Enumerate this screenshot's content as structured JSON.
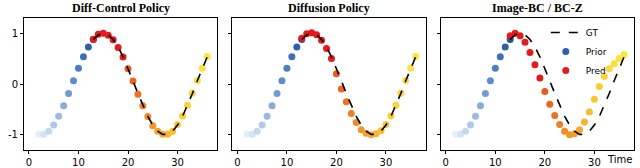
{
  "chart_data": [
    {
      "type": "scatter",
      "title": "Diff-Control Policy",
      "xlim": [
        -1,
        38
      ],
      "xticks": [
        0,
        10,
        20,
        30
      ],
      "ylim": [
        -1.3,
        1.3
      ],
      "yticks": [
        -1,
        0,
        1
      ],
      "grid": false,
      "series": [
        {
          "name": "Prior",
          "type": "scatter",
          "marker": "circle",
          "color": "#2e62a7",
          "x": [
            2,
            3,
            4,
            5,
            6,
            7,
            8,
            9,
            10,
            11,
            12,
            13
          ],
          "values": [
            -0.992,
            -0.992,
            -0.93,
            -0.809,
            -0.637,
            -0.426,
            -0.187,
            0.063,
            0.309,
            0.536,
            0.729,
            0.876
          ],
          "colors": [
            "#e6eef8",
            "#d6e3f3",
            "#c4d7ee",
            "#b0c9e8",
            "#9bbbe1",
            "#86acd9",
            "#719dd1",
            "#5d8ec8",
            "#4b7fbe",
            "#3b70b3",
            "#2e62a7",
            "#24559b"
          ]
        },
        {
          "name": "Pred",
          "type": "scatter",
          "marker": "circle",
          "color": "#e41a1c",
          "x": [
            13,
            14,
            15,
            16,
            17,
            18,
            19,
            20,
            21,
            22,
            23,
            24,
            25,
            26,
            27,
            28,
            29,
            30,
            31,
            32,
            33,
            34,
            35,
            36
          ],
          "values": [
            0.88,
            0.98,
            1.0,
            0.96,
            0.87,
            0.72,
            0.53,
            0.3,
            0.06,
            -0.2,
            -0.43,
            -0.64,
            -0.82,
            -0.93,
            -0.99,
            -0.99,
            -0.93,
            -0.8,
            -0.63,
            -0.42,
            -0.18,
            0.07,
            0.31,
            0.54
          ],
          "colors": [
            "#e41a1c",
            "#e41a1c",
            "#e41a1c",
            "#e41a1c",
            "#e41a1c",
            "#e41a1c",
            "#e41a1c",
            "#ea5a1e",
            "#ec6620",
            "#ee7222",
            "#f07e24",
            "#f28a26",
            "#f39528",
            "#f5a02a",
            "#f6aa2c",
            "#f8b42e",
            "#f9bd30",
            "#fac532",
            "#fbcc34",
            "#fcd236",
            "#fdd838",
            "#fddd3a",
            "#fee13c",
            "#fee53e"
          ]
        },
        {
          "name": "GT",
          "type": "line",
          "line_style": "dash",
          "color": "#000000",
          "x": [
            13,
            14,
            15,
            16,
            17,
            18,
            19,
            20,
            21,
            22,
            23,
            24,
            25,
            26,
            27,
            28,
            29,
            30,
            31,
            32,
            33,
            34,
            35,
            36
          ],
          "values": [
            0.876,
            0.968,
            1.0,
            0.968,
            0.876,
            0.729,
            0.536,
            0.309,
            0.063,
            -0.187,
            -0.426,
            -0.637,
            -0.809,
            -0.93,
            -0.992,
            -0.992,
            -0.93,
            -0.809,
            -0.637,
            -0.426,
            -0.187,
            0.063,
            0.309,
            0.536
          ]
        }
      ]
    },
    {
      "type": "scatter",
      "title": "Diffusion Policy",
      "tick_labels": "x",
      "xlim": [
        -1,
        38
      ],
      "xticks": [
        0,
        10,
        20,
        30
      ],
      "ylim": [
        -1.3,
        1.3
      ],
      "yticks": [
        -1,
        0,
        1
      ],
      "grid": false,
      "series": [
        {
          "name": "Prior",
          "type": "scatter",
          "marker": "circle",
          "color": "#2e62a7",
          "x": [
            2,
            3,
            4,
            5,
            6,
            7,
            8,
            9,
            10,
            11,
            12,
            13
          ],
          "values": [
            -0.992,
            -0.992,
            -0.93,
            -0.809,
            -0.637,
            -0.426,
            -0.187,
            0.063,
            0.309,
            0.536,
            0.729,
            0.876
          ],
          "colors": [
            "#e6eef8",
            "#d6e3f3",
            "#c4d7ee",
            "#b0c9e8",
            "#9bbbe1",
            "#86acd9",
            "#719dd1",
            "#5d8ec8",
            "#4b7fbe",
            "#3b70b3",
            "#2e62a7",
            "#24559b"
          ]
        },
        {
          "name": "Pred",
          "type": "scatter",
          "marker": "circle",
          "color": "#e41a1c",
          "x": [
            13,
            14,
            15,
            16,
            17,
            18,
            19,
            20,
            21,
            22,
            23,
            24,
            25,
            26,
            27,
            28,
            29,
            30,
            31,
            32,
            33,
            34,
            35,
            36
          ],
          "values": [
            0.9,
            0.99,
            1.01,
            0.97,
            0.86,
            0.7,
            0.5,
            0.2,
            -0.1,
            -0.35,
            -0.58,
            -0.76,
            -0.9,
            -0.97,
            -1.0,
            -0.98,
            -0.92,
            -0.8,
            -0.63,
            -0.42,
            -0.18,
            0.07,
            0.31,
            0.54
          ],
          "colors": [
            "#e41a1c",
            "#e41a1c",
            "#e41a1c",
            "#e41a1c",
            "#e41a1c",
            "#e41a1c",
            "#e41a1c",
            "#ea5a1e",
            "#ec6620",
            "#ee7222",
            "#f07e24",
            "#f28a26",
            "#f39528",
            "#f5a02a",
            "#f6aa2c",
            "#f8b42e",
            "#f9bd30",
            "#fac532",
            "#fbcc34",
            "#fcd236",
            "#fdd838",
            "#fddd3a",
            "#fee13c",
            "#fee53e"
          ]
        },
        {
          "name": "GT",
          "type": "line",
          "line_style": "dash",
          "color": "#000000",
          "x": [
            13,
            14,
            15,
            16,
            17,
            18,
            19,
            20,
            21,
            22,
            23,
            24,
            25,
            26,
            27,
            28,
            29,
            30,
            31,
            32,
            33,
            34,
            35,
            36
          ],
          "values": [
            0.876,
            0.968,
            1.0,
            0.968,
            0.876,
            0.729,
            0.536,
            0.309,
            0.063,
            -0.187,
            -0.426,
            -0.637,
            -0.809,
            -0.93,
            -0.992,
            -0.992,
            -0.93,
            -0.809,
            -0.637,
            -0.426,
            -0.187,
            0.063,
            0.309,
            0.536
          ]
        }
      ]
    },
    {
      "type": "scatter",
      "title": "Image-BC / BC-Z",
      "tick_labels": "x",
      "xlabel": "Time",
      "legend": "upper right",
      "xlim": [
        -1,
        38
      ],
      "xticks": [
        0,
        10,
        20,
        30
      ],
      "ylim": [
        -1.3,
        1.3
      ],
      "yticks": [
        -1,
        0,
        1
      ],
      "grid": false,
      "series": [
        {
          "name": "GT",
          "type": "line",
          "line_style": "dash",
          "color": "#000000",
          "x": [
            13,
            14,
            15,
            16,
            17,
            18,
            19,
            20,
            21,
            22,
            23,
            24,
            25,
            26,
            27,
            28,
            29,
            30,
            31,
            32,
            33,
            34,
            35,
            36
          ],
          "values": [
            0.876,
            0.968,
            1.0,
            0.968,
            0.876,
            0.729,
            0.536,
            0.309,
            0.063,
            -0.187,
            -0.426,
            -0.637,
            -0.809,
            -0.93,
            -0.992,
            -0.992,
            -0.93,
            -0.809,
            -0.637,
            -0.426,
            -0.187,
            0.063,
            0.309,
            0.536
          ]
        },
        {
          "name": "Prior",
          "type": "scatter",
          "marker": "circle",
          "color": "#2e62a7",
          "x": [
            2,
            3,
            4,
            5,
            6,
            7,
            8,
            9,
            10,
            11,
            12,
            13
          ],
          "values": [
            -0.992,
            -0.992,
            -0.93,
            -0.809,
            -0.637,
            -0.426,
            -0.187,
            0.063,
            0.309,
            0.536,
            0.729,
            0.876
          ],
          "colors": [
            "#e6eef8",
            "#d6e3f3",
            "#c4d7ee",
            "#b0c9e8",
            "#9bbbe1",
            "#86acd9",
            "#719dd1",
            "#5d8ec8",
            "#4b7fbe",
            "#3b70b3",
            "#2e62a7",
            "#24559b"
          ]
        },
        {
          "name": "Pred",
          "type": "scatter",
          "marker": "circle",
          "color": "#e41a1c",
          "x": [
            13,
            14,
            15,
            16,
            17,
            18,
            19,
            20,
            21,
            22,
            23,
            24,
            25,
            26,
            27,
            28,
            29,
            30,
            31,
            32,
            33,
            34,
            35,
            36
          ],
          "values": [
            0.95,
            1.0,
            0.95,
            0.82,
            0.62,
            0.38,
            0.12,
            -0.15,
            -0.4,
            -0.62,
            -0.8,
            -0.93,
            -1.0,
            -0.98,
            -0.9,
            -0.75,
            -0.55,
            -0.3,
            -0.05,
            0.15,
            0.3,
            0.4,
            0.5,
            0.58
          ],
          "colors": [
            "#e41a1c",
            "#e41a1c",
            "#e41a1c",
            "#e41a1c",
            "#e41a1c",
            "#e41a1c",
            "#e41a1c",
            "#ea5a1e",
            "#ec6620",
            "#ee7222",
            "#f07e24",
            "#f28a26",
            "#f39528",
            "#f5a02a",
            "#f6aa2c",
            "#f8b42e",
            "#f9bd30",
            "#fac532",
            "#fbcc34",
            "#fcd236",
            "#fdd838",
            "#fddd3a",
            "#fee13c",
            "#fee53e"
          ]
        }
      ]
    }
  ]
}
